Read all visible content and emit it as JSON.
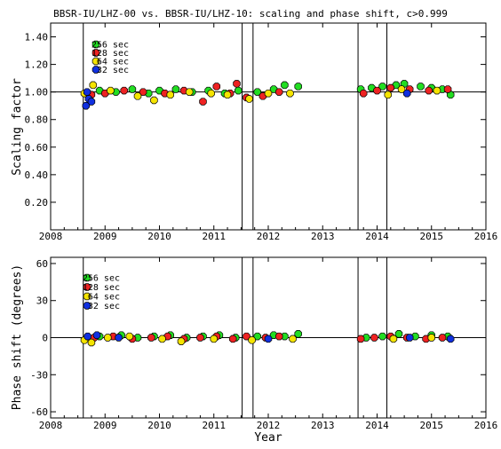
{
  "title": "BBSR-IU/LHZ-00 vs. BBSR-IU/LHZ-10: scaling and phase shift, c>0.999",
  "colors": {
    "s256": "#22dd22",
    "s128": "#ee2222",
    "s64": "#f5e400",
    "s32": "#1030e0"
  },
  "chart_data": [
    {
      "type": "scatter",
      "xlabel": "",
      "ylabel": "Scaling factor",
      "xlim": [
        2008,
        2016
      ],
      "ylim": [
        0.0,
        1.5
      ],
      "xticks": [
        "2008",
        "2009",
        "2010",
        "2011",
        "2012",
        "2013",
        "2014",
        "2015",
        "2016"
      ],
      "yticks": [
        "0.20",
        "0.40",
        "0.60",
        "0.80",
        "1.00",
        "1.20",
        "1.40"
      ],
      "reference_line": 1.0,
      "vertical_lines": [
        2008.6,
        2011.52,
        2011.72,
        2013.65,
        2014.18
      ],
      "legend": {
        "placement": "top-left",
        "entries": [
          "256 sec",
          "128 sec",
          "64 sec",
          "32 sec"
        ]
      },
      "series": [
        {
          "name": "256 sec",
          "color": "#22dd22",
          "points": [
            [
              2008.9,
              1.01
            ],
            [
              2009.2,
              1.0
            ],
            [
              2009.5,
              1.02
            ],
            [
              2009.8,
              0.99
            ],
            [
              2010.0,
              1.01
            ],
            [
              2010.3,
              1.02
            ],
            [
              2010.6,
              1.0
            ],
            [
              2010.9,
              1.01
            ],
            [
              2011.2,
              0.99
            ],
            [
              2011.45,
              1.01
            ],
            [
              2011.8,
              1.0
            ],
            [
              2012.1,
              1.02
            ],
            [
              2012.3,
              1.05
            ],
            [
              2012.55,
              1.04
            ],
            [
              2013.7,
              1.02
            ],
            [
              2013.9,
              1.03
            ],
            [
              2014.1,
              1.04
            ],
            [
              2014.35,
              1.05
            ],
            [
              2014.5,
              1.06
            ],
            [
              2014.8,
              1.04
            ],
            [
              2015.0,
              1.03
            ],
            [
              2015.2,
              1.02
            ],
            [
              2015.35,
              0.98
            ]
          ]
        },
        {
          "name": "128 sec",
          "color": "#ee2222",
          "points": [
            [
              2008.75,
              0.98
            ],
            [
              2009.0,
              0.99
            ],
            [
              2009.35,
              1.01
            ],
            [
              2009.7,
              1.0
            ],
            [
              2010.1,
              0.99
            ],
            [
              2010.45,
              1.01
            ],
            [
              2010.8,
              0.93
            ],
            [
              2011.05,
              1.04
            ],
            [
              2011.3,
              0.99
            ],
            [
              2011.42,
              1.06
            ],
            [
              2011.6,
              0.96
            ],
            [
              2011.9,
              0.97
            ],
            [
              2012.2,
              1.0
            ],
            [
              2013.75,
              0.99
            ],
            [
              2014.0,
              1.01
            ],
            [
              2014.25,
              1.03
            ],
            [
              2014.6,
              1.02
            ],
            [
              2014.95,
              1.01
            ],
            [
              2015.3,
              1.02
            ]
          ]
        },
        {
          "name": "64 sec",
          "color": "#f5e400",
          "points": [
            [
              2008.62,
              0.99
            ],
            [
              2008.78,
              1.05
            ],
            [
              2009.1,
              1.01
            ],
            [
              2009.6,
              0.97
            ],
            [
              2009.9,
              0.94
            ],
            [
              2010.2,
              0.98
            ],
            [
              2010.55,
              1.0
            ],
            [
              2010.95,
              0.99
            ],
            [
              2011.25,
              0.98
            ],
            [
              2011.65,
              0.95
            ],
            [
              2012.0,
              0.99
            ],
            [
              2012.4,
              0.99
            ],
            [
              2014.2,
              0.98
            ],
            [
              2014.45,
              1.02
            ],
            [
              2015.1,
              1.01
            ]
          ]
        },
        {
          "name": "32 sec",
          "color": "#1030e0",
          "points": [
            [
              2008.65,
              0.9
            ],
            [
              2008.7,
              0.95
            ],
            [
              2008.75,
              0.93
            ],
            [
              2008.67,
              1.0
            ],
            [
              2014.55,
              0.99
            ]
          ]
        }
      ]
    },
    {
      "type": "scatter",
      "xlabel": "Year",
      "ylabel": "Phase shift (degrees)",
      "xlim": [
        2008,
        2016
      ],
      "ylim": [
        -65,
        65
      ],
      "xticks": [
        "2008",
        "2009",
        "2010",
        "2011",
        "2012",
        "2013",
        "2014",
        "2015",
        "2016"
      ],
      "yticks": [
        "-60",
        "-30",
        "0",
        "30",
        "60"
      ],
      "reference_line": 0,
      "vertical_lines": [
        2008.6,
        2011.52,
        2011.72,
        2013.65,
        2014.18
      ],
      "legend": {
        "placement": "top-left",
        "entries": [
          "256 sec",
          "128 sec",
          "64 sec",
          "32 sec"
        ]
      },
      "series": [
        {
          "name": "256 sec",
          "color": "#22dd22",
          "points": [
            [
              2008.9,
              1
            ],
            [
              2009.3,
              2
            ],
            [
              2009.6,
              0
            ],
            [
              2009.9,
              1
            ],
            [
              2010.2,
              2
            ],
            [
              2010.5,
              0
            ],
            [
              2010.8,
              1
            ],
            [
              2011.1,
              2
            ],
            [
              2011.4,
              0
            ],
            [
              2011.8,
              1
            ],
            [
              2012.1,
              2
            ],
            [
              2012.3,
              1
            ],
            [
              2012.55,
              3
            ],
            [
              2013.8,
              0
            ],
            [
              2014.1,
              1
            ],
            [
              2014.4,
              3
            ],
            [
              2014.7,
              1
            ],
            [
              2015.0,
              2
            ],
            [
              2015.3,
              1
            ]
          ]
        },
        {
          "name": "128 sec",
          "color": "#ee2222",
          "points": [
            [
              2008.8,
              0
            ],
            [
              2009.15,
              1
            ],
            [
              2009.5,
              -1
            ],
            [
              2009.85,
              0
            ],
            [
              2010.15,
              1
            ],
            [
              2010.45,
              -1
            ],
            [
              2010.75,
              0
            ],
            [
              2011.05,
              1
            ],
            [
              2011.35,
              -1
            ],
            [
              2011.6,
              1
            ],
            [
              2011.95,
              0
            ],
            [
              2012.2,
              1
            ],
            [
              2013.7,
              -1
            ],
            [
              2013.95,
              0
            ],
            [
              2014.25,
              1
            ],
            [
              2014.55,
              0
            ],
            [
              2014.9,
              -1
            ],
            [
              2015.2,
              0
            ]
          ]
        },
        {
          "name": "64 sec",
          "color": "#f5e400",
          "points": [
            [
              2008.62,
              -2
            ],
            [
              2008.75,
              -4
            ],
            [
              2009.05,
              0
            ],
            [
              2009.45,
              1
            ],
            [
              2010.05,
              -1
            ],
            [
              2010.4,
              -3
            ],
            [
              2011.0,
              -1
            ],
            [
              2011.7,
              -2
            ],
            [
              2012.45,
              -1
            ],
            [
              2014.3,
              -1
            ],
            [
              2015.0,
              0
            ]
          ]
        },
        {
          "name": "32 sec",
          "color": "#1030e0",
          "points": [
            [
              2008.68,
              1
            ],
            [
              2008.85,
              2
            ],
            [
              2009.25,
              0
            ],
            [
              2012.0,
              -1
            ],
            [
              2014.6,
              0
            ],
            [
              2015.35,
              -1
            ]
          ]
        }
      ]
    }
  ]
}
